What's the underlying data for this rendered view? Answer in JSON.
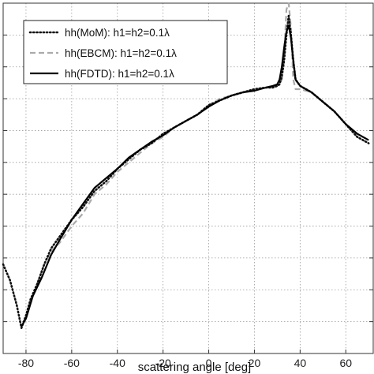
{
  "chart_data": {
    "type": "line",
    "title": "",
    "xlabel": "scattering angle [deg]",
    "ylabel": "",
    "xlim": [
      -90,
      72
    ],
    "ylim": [
      0,
      11
    ],
    "grid": true,
    "legend_position": "top-left",
    "x_ticks": [
      "-80",
      "-60",
      "-40",
      "-20",
      "0",
      "20",
      "40",
      "60"
    ],
    "x_tick_values": [
      -80,
      -60,
      -40,
      -20,
      0,
      20,
      40,
      60
    ],
    "y_tick_values": [
      1,
      2,
      3,
      4,
      5,
      6,
      7,
      8,
      9,
      10
    ],
    "series": [
      {
        "name": "hh(MoM):   h1=h2=0.1λ",
        "style": "dotted",
        "color": "#111111",
        "x": [
          -90,
          -87,
          -84,
          -82,
          -80,
          -78,
          -75,
          -72,
          -69,
          -65,
          -60,
          -55,
          -50,
          -45,
          -40,
          -35,
          -30,
          -25,
          -20,
          -15,
          -10,
          -5,
          0,
          5,
          10,
          15,
          20,
          25,
          28,
          30,
          31,
          32,
          33,
          34,
          35,
          36,
          37,
          38,
          40,
          45,
          50,
          55,
          60,
          65,
          70
        ],
        "y": [
          2.8,
          2.3,
          1.5,
          0.8,
          1.2,
          1.7,
          2.2,
          2.8,
          3.3,
          3.7,
          4.2,
          4.6,
          5.1,
          5.4,
          5.8,
          6.1,
          6.4,
          6.6,
          6.9,
          7.1,
          7.3,
          7.5,
          7.8,
          7.95,
          8.1,
          8.2,
          8.3,
          8.35,
          8.35,
          8.4,
          8.45,
          8.7,
          9.2,
          10.0,
          10.6,
          10.0,
          9.2,
          8.6,
          8.4,
          8.2,
          7.9,
          7.6,
          7.2,
          6.8,
          6.6
        ]
      },
      {
        "name": "hh(EBCM):  h1=h2=0.1λ",
        "style": "dashed",
        "color": "#aaaaaa",
        "x": [
          -75,
          -72,
          -69,
          -65,
          -60,
          -55,
          -50,
          -45,
          -40,
          -35,
          -30,
          -25,
          -20,
          -15,
          -10,
          -5,
          0,
          5,
          10,
          15,
          20,
          25,
          28,
          30,
          32,
          33,
          34,
          35,
          36,
          37,
          38,
          40,
          45,
          50,
          55,
          60,
          65,
          70
        ],
        "y": [
          2.2,
          2.8,
          3.2,
          3.5,
          4.0,
          4.4,
          5.0,
          5.3,
          5.7,
          6.0,
          6.3,
          6.6,
          6.8,
          7.1,
          7.3,
          7.5,
          7.8,
          8.0,
          8.1,
          8.2,
          8.3,
          8.35,
          8.4,
          8.4,
          8.6,
          9.3,
          10.8,
          11.2,
          10.2,
          8.6,
          8.3,
          8.3,
          8.2,
          7.9,
          7.6,
          7.2,
          6.8,
          6.6
        ]
      },
      {
        "name": "hh(FDTD):   h1=h2=0.1λ",
        "style": "solid",
        "color": "#000000",
        "x": [
          -82,
          -80,
          -77,
          -73,
          -69,
          -65,
          -60,
          -55,
          -50,
          -45,
          -40,
          -35,
          -30,
          -25,
          -20,
          -15,
          -10,
          -5,
          0,
          5,
          10,
          15,
          20,
          25,
          28,
          30,
          31,
          32,
          33,
          34,
          35,
          36,
          37,
          38,
          40,
          45,
          50,
          55,
          60,
          65,
          70
        ],
        "y": [
          0.85,
          1.1,
          1.8,
          2.4,
          3.1,
          3.6,
          4.2,
          4.7,
          5.2,
          5.5,
          5.8,
          6.15,
          6.4,
          6.65,
          6.85,
          7.1,
          7.3,
          7.5,
          7.75,
          7.95,
          8.1,
          8.2,
          8.25,
          8.35,
          8.4,
          8.45,
          8.6,
          9.0,
          9.6,
          10.1,
          10.3,
          9.9,
          9.2,
          8.6,
          8.4,
          8.2,
          7.9,
          7.6,
          7.2,
          6.9,
          6.7
        ]
      }
    ]
  }
}
